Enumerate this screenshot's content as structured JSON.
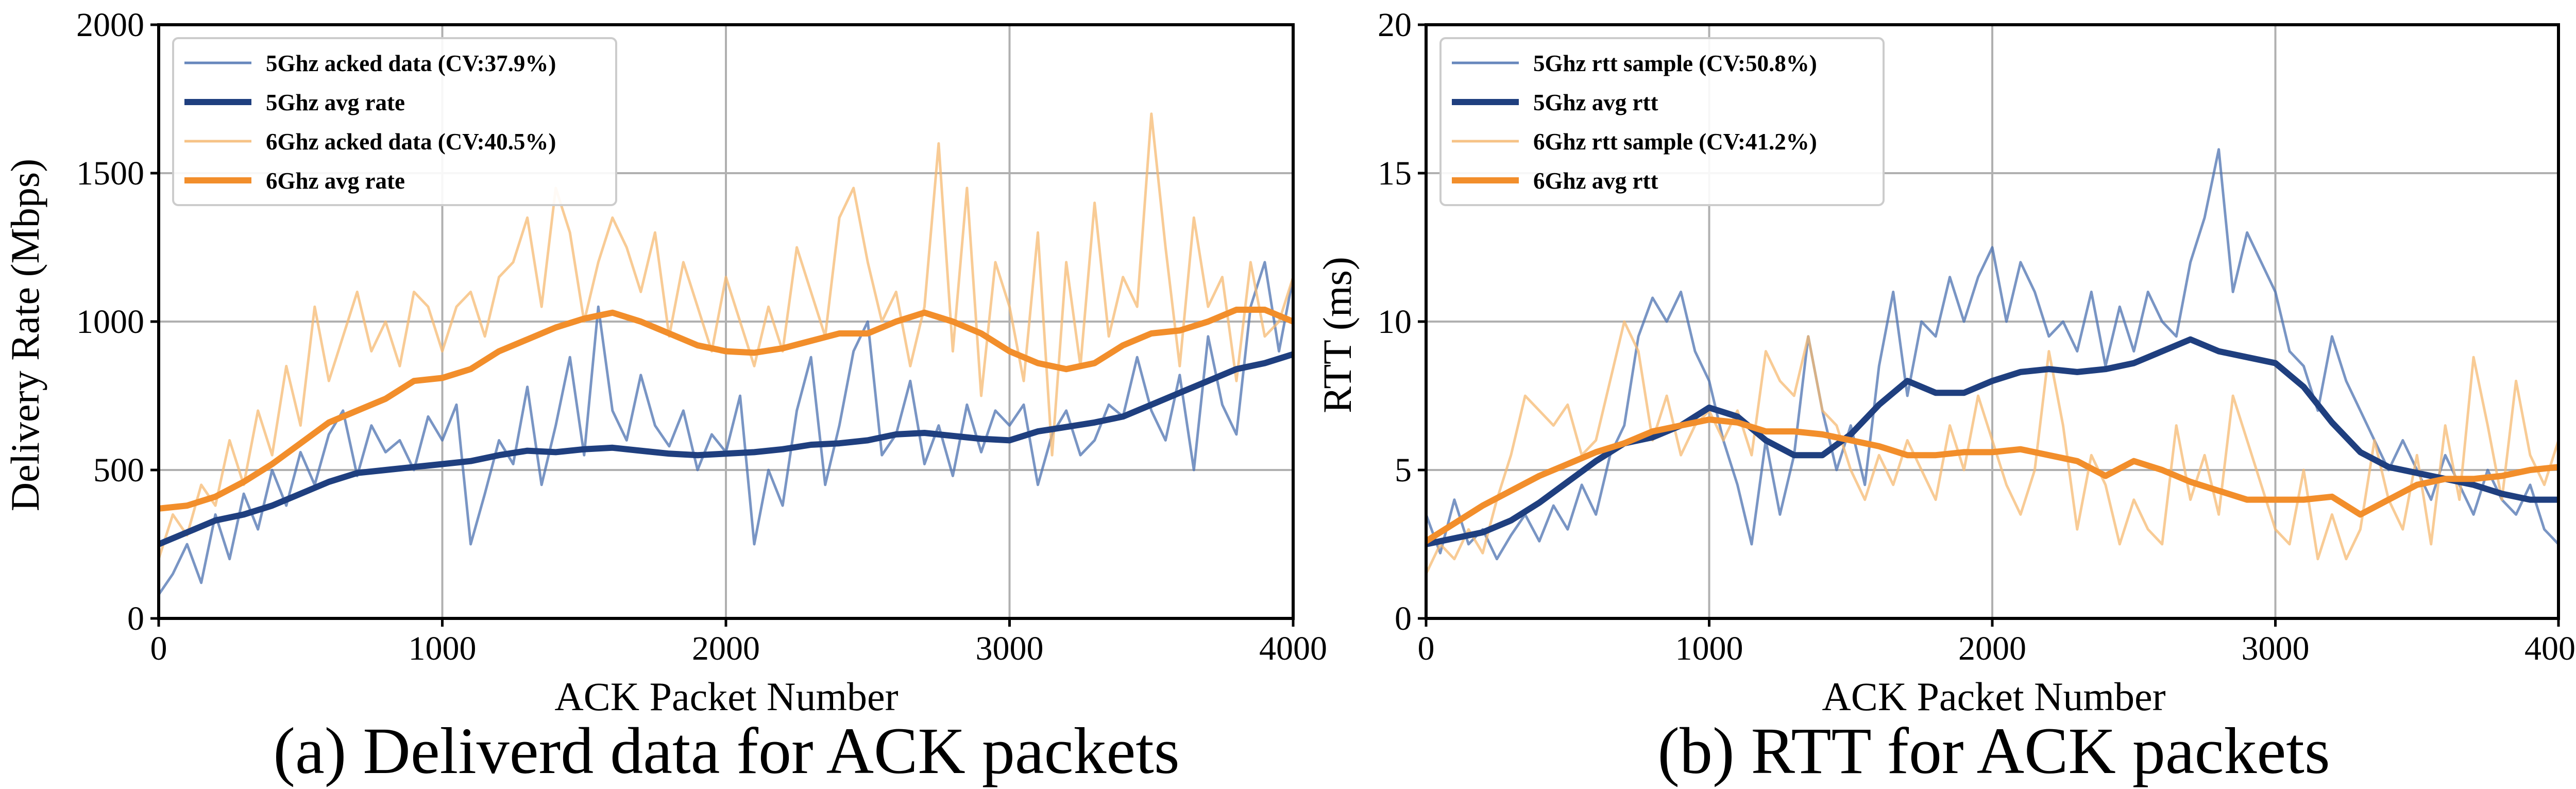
{
  "chart_data": [
    {
      "type": "line",
      "caption": "(a) Deliverd data for ACK packets",
      "xlabel": "ACK Packet Number",
      "ylabel": "Delivery Rate (Mbps)",
      "xlim": [
        0,
        4000
      ],
      "ylim": [
        0,
        2000
      ],
      "xticks": [
        0,
        1000,
        2000,
        3000,
        4000
      ],
      "yticks": [
        0,
        500,
        1000,
        1500,
        2000
      ],
      "xtick_labels": [
        "0",
        "1000",
        "2000",
        "3000",
        "4000"
      ],
      "ytick_labels": [
        "0",
        "500",
        "1000",
        "1500",
        "2000"
      ],
      "grid": true,
      "legend_position": "top-left",
      "series": [
        {
          "name": "5Ghz acked data (CV:37.9%)",
          "style": "thin",
          "color": "#4c72b0",
          "x": [
            0,
            50,
            100,
            150,
            200,
            250,
            300,
            350,
            400,
            450,
            500,
            550,
            600,
            650,
            700,
            750,
            800,
            850,
            900,
            950,
            1000,
            1050,
            1100,
            1150,
            1200,
            1250,
            1300,
            1350,
            1400,
            1450,
            1500,
            1550,
            1600,
            1650,
            1700,
            1750,
            1800,
            1850,
            1900,
            1950,
            2000,
            2050,
            2100,
            2150,
            2200,
            2250,
            2300,
            2350,
            2400,
            2450,
            2500,
            2550,
            2600,
            2650,
            2700,
            2750,
            2800,
            2850,
            2900,
            2950,
            3000,
            3050,
            3100,
            3150,
            3200,
            3250,
            3300,
            3350,
            3400,
            3450,
            3500,
            3550,
            3600,
            3650,
            3700,
            3750,
            3800,
            3850,
            3900,
            3950,
            4000
          ],
          "values": [
            80,
            150,
            250,
            120,
            350,
            200,
            420,
            300,
            500,
            380,
            560,
            450,
            620,
            700,
            480,
            650,
            560,
            600,
            500,
            680,
            600,
            720,
            250,
            420,
            600,
            520,
            780,
            450,
            650,
            880,
            550,
            1050,
            700,
            600,
            820,
            650,
            580,
            700,
            500,
            620,
            560,
            750,
            250,
            500,
            380,
            700,
            880,
            450,
            650,
            900,
            1000,
            550,
            620,
            800,
            520,
            650,
            480,
            720,
            560,
            700,
            650,
            720,
            450,
            620,
            700,
            550,
            600,
            720,
            680,
            880,
            700,
            600,
            820,
            500,
            950,
            720,
            620,
            1050,
            1200,
            900,
            1150
          ]
        },
        {
          "name": "5Ghz avg rate",
          "style": "thick",
          "color": "#1f3f7f",
          "x": [
            0,
            100,
            200,
            300,
            400,
            500,
            600,
            700,
            800,
            900,
            1000,
            1100,
            1200,
            1300,
            1400,
            1500,
            1600,
            1700,
            1800,
            1900,
            2000,
            2100,
            2200,
            2300,
            2400,
            2500,
            2600,
            2700,
            2800,
            2900,
            3000,
            3100,
            3200,
            3300,
            3400,
            3500,
            3600,
            3700,
            3800,
            3900,
            4000
          ],
          "values": [
            250,
            290,
            330,
            350,
            380,
            420,
            460,
            490,
            500,
            510,
            520,
            530,
            550,
            565,
            560,
            570,
            575,
            565,
            555,
            550,
            555,
            560,
            570,
            585,
            590,
            600,
            620,
            625,
            615,
            605,
            600,
            630,
            645,
            660,
            680,
            720,
            760,
            800,
            840,
            860,
            890
          ]
        },
        {
          "name": "6Ghz acked data (CV:40.5%)",
          "style": "thin",
          "color": "#f5b971",
          "x": [
            0,
            50,
            100,
            150,
            200,
            250,
            300,
            350,
            400,
            450,
            500,
            550,
            600,
            650,
            700,
            750,
            800,
            850,
            900,
            950,
            1000,
            1050,
            1100,
            1150,
            1200,
            1250,
            1300,
            1350,
            1400,
            1450,
            1500,
            1550,
            1600,
            1650,
            1700,
            1750,
            1800,
            1850,
            1900,
            1950,
            2000,
            2050,
            2100,
            2150,
            2200,
            2250,
            2300,
            2350,
            2400,
            2450,
            2500,
            2550,
            2600,
            2650,
            2700,
            2750,
            2800,
            2850,
            2900,
            2950,
            3000,
            3050,
            3100,
            3150,
            3200,
            3250,
            3300,
            3350,
            3400,
            3450,
            3500,
            3550,
            3600,
            3650,
            3700,
            3750,
            3800,
            3850,
            3900,
            3950,
            4000
          ],
          "values": [
            200,
            350,
            280,
            450,
            380,
            600,
            450,
            700,
            550,
            850,
            650,
            1050,
            800,
            950,
            1100,
            900,
            1000,
            850,
            1100,
            1050,
            900,
            1050,
            1100,
            950,
            1150,
            1200,
            1350,
            1050,
            1450,
            1300,
            1000,
            1200,
            1350,
            1250,
            1100,
            1300,
            950,
            1200,
            1050,
            900,
            1150,
            1000,
            850,
            1050,
            900,
            1250,
            1100,
            950,
            1350,
            1450,
            1200,
            1000,
            1100,
            850,
            1050,
            1600,
            900,
            1450,
            750,
            1200,
            1050,
            800,
            1300,
            550,
            1200,
            850,
            1400,
            950,
            1150,
            1050,
            1700,
            1250,
            850,
            1350,
            1050,
            1150,
            800,
            1200,
            950,
            1000,
            1150
          ]
        },
        {
          "name": "6Ghz avg rate",
          "style": "thick",
          "color": "#f28e2b",
          "x": [
            0,
            100,
            200,
            300,
            400,
            500,
            600,
            700,
            800,
            900,
            1000,
            1100,
            1200,
            1300,
            1400,
            1500,
            1600,
            1700,
            1800,
            1900,
            2000,
            2100,
            2200,
            2300,
            2400,
            2500,
            2600,
            2700,
            2800,
            2900,
            3000,
            3100,
            3200,
            3300,
            3400,
            3500,
            3600,
            3700,
            3800,
            3900,
            4000
          ],
          "values": [
            370,
            380,
            410,
            460,
            520,
            590,
            660,
            700,
            740,
            800,
            810,
            840,
            900,
            940,
            980,
            1010,
            1030,
            1000,
            960,
            920,
            900,
            895,
            910,
            935,
            960,
            960,
            1000,
            1030,
            1000,
            960,
            900,
            860,
            840,
            860,
            920,
            960,
            970,
            1000,
            1040,
            1040,
            1000
          ]
        }
      ]
    },
    {
      "type": "line",
      "caption": "(b) RTT for ACK packets",
      "xlabel": "ACK Packet Number",
      "ylabel": "RTT (ms)",
      "xlim": [
        0,
        4000
      ],
      "ylim": [
        0,
        20
      ],
      "xticks": [
        0,
        1000,
        2000,
        3000,
        4000
      ],
      "yticks": [
        0,
        5,
        10,
        15,
        20
      ],
      "xtick_labels": [
        "0",
        "1000",
        "2000",
        "3000",
        "4000"
      ],
      "ytick_labels": [
        "0",
        "5",
        "10",
        "15",
        "20"
      ],
      "grid": true,
      "legend_position": "top-left",
      "series": [
        {
          "name": "5Ghz rtt sample (CV:50.8%)",
          "style": "thin",
          "color": "#4c72b0",
          "x": [
            0,
            50,
            100,
            150,
            200,
            250,
            300,
            350,
            400,
            450,
            500,
            550,
            600,
            650,
            700,
            750,
            800,
            850,
            900,
            950,
            1000,
            1050,
            1100,
            1150,
            1200,
            1250,
            1300,
            1350,
            1400,
            1450,
            1500,
            1550,
            1600,
            1650,
            1700,
            1750,
            1800,
            1850,
            1900,
            1950,
            2000,
            2050,
            2100,
            2150,
            2200,
            2250,
            2300,
            2350,
            2400,
            2450,
            2500,
            2550,
            2600,
            2650,
            2700,
            2750,
            2800,
            2850,
            2900,
            2950,
            3000,
            3050,
            3100,
            3150,
            3200,
            3250,
            3300,
            3350,
            3400,
            3450,
            3500,
            3550,
            3600,
            3650,
            3700,
            3750,
            3800,
            3850,
            3900,
            3950,
            4000
          ],
          "values": [
            3.5,
            2.2,
            4.0,
            2.5,
            3.0,
            2.0,
            2.8,
            3.5,
            2.6,
            3.8,
            3.0,
            4.5,
            3.5,
            5.5,
            6.5,
            9.5,
            10.8,
            10.0,
            11.0,
            9.0,
            8.0,
            6.0,
            4.5,
            2.5,
            6.0,
            3.5,
            5.5,
            9.5,
            7.0,
            5.0,
            6.5,
            4.5,
            8.5,
            11.0,
            7.5,
            10.0,
            9.5,
            11.5,
            10.0,
            11.5,
            12.5,
            10.0,
            12.0,
            11.0,
            9.5,
            10.0,
            9.0,
            11.0,
            8.5,
            10.5,
            9.0,
            11.0,
            10.0,
            9.5,
            12.0,
            13.5,
            15.8,
            11.0,
            13.0,
            12.0,
            11.0,
            9.0,
            8.5,
            7.0,
            9.5,
            8.0,
            7.0,
            6.0,
            5.0,
            6.0,
            5.0,
            4.0,
            5.5,
            4.5,
            3.5,
            5.0,
            4.0,
            3.5,
            4.5,
            3.0,
            2.5
          ]
        },
        {
          "name": "5Ghz avg rtt",
          "style": "thick",
          "color": "#1f3f7f",
          "x": [
            0,
            100,
            200,
            300,
            400,
            500,
            600,
            700,
            800,
            900,
            1000,
            1100,
            1200,
            1300,
            1400,
            1500,
            1600,
            1700,
            1800,
            1900,
            2000,
            2100,
            2200,
            2300,
            2400,
            2500,
            2600,
            2700,
            2800,
            2900,
            3000,
            3100,
            3200,
            3300,
            3400,
            3500,
            3600,
            3700,
            3800,
            3900,
            4000
          ],
          "values": [
            2.5,
            2.7,
            2.9,
            3.3,
            3.9,
            4.6,
            5.3,
            5.9,
            6.1,
            6.5,
            7.1,
            6.8,
            6.0,
            5.5,
            5.5,
            6.2,
            7.2,
            8.0,
            7.6,
            7.6,
            8.0,
            8.3,
            8.4,
            8.3,
            8.4,
            8.6,
            9.0,
            9.4,
            9.0,
            8.8,
            8.6,
            7.8,
            6.6,
            5.6,
            5.1,
            4.9,
            4.7,
            4.5,
            4.2,
            4.0,
            4.0
          ]
        },
        {
          "name": "6Ghz rtt sample (CV:41.2%)",
          "style": "thin",
          "color": "#f5b971",
          "x": [
            0,
            50,
            100,
            150,
            200,
            250,
            300,
            350,
            400,
            450,
            500,
            550,
            600,
            650,
            700,
            750,
            800,
            850,
            900,
            950,
            1000,
            1050,
            1100,
            1150,
            1200,
            1250,
            1300,
            1350,
            1400,
            1450,
            1500,
            1550,
            1600,
            1650,
            1700,
            1750,
            1800,
            1850,
            1900,
            1950,
            2000,
            2050,
            2100,
            2150,
            2200,
            2250,
            2300,
            2350,
            2400,
            2450,
            2500,
            2550,
            2600,
            2650,
            2700,
            2750,
            2800,
            2850,
            2900,
            2950,
            3000,
            3050,
            3100,
            3150,
            3200,
            3250,
            3300,
            3350,
            3400,
            3450,
            3500,
            3550,
            3600,
            3650,
            3700,
            3750,
            3800,
            3850,
            3900,
            3950,
            4000
          ],
          "values": [
            1.5,
            2.5,
            2.0,
            3.0,
            2.2,
            4.0,
            5.5,
            7.5,
            7.0,
            6.5,
            7.2,
            5.5,
            6.0,
            8.0,
            10.0,
            9.0,
            6.0,
            7.5,
            5.5,
            6.5,
            7.0,
            6.0,
            7.0,
            5.5,
            9.0,
            8.0,
            7.5,
            9.5,
            7.0,
            6.5,
            5.0,
            4.0,
            5.5,
            4.5,
            6.0,
            5.0,
            4.0,
            6.5,
            5.0,
            7.5,
            6.0,
            4.5,
            3.5,
            5.0,
            9.0,
            6.5,
            3.0,
            5.5,
            4.5,
            2.5,
            4.0,
            3.0,
            2.5,
            6.5,
            4.0,
            5.5,
            3.5,
            7.5,
            6.0,
            4.5,
            3.0,
            2.5,
            5.0,
            2.0,
            3.5,
            2.0,
            3.0,
            6.0,
            4.0,
            3.0,
            5.5,
            2.5,
            6.5,
            4.0,
            8.8,
            6.5,
            4.0,
            8.0,
            5.5,
            4.5,
            6.0
          ]
        },
        {
          "name": "6Ghz avg rtt",
          "style": "thick",
          "color": "#f28e2b",
          "x": [
            0,
            100,
            200,
            300,
            400,
            500,
            600,
            700,
            800,
            900,
            1000,
            1100,
            1200,
            1300,
            1400,
            1500,
            1600,
            1700,
            1800,
            1900,
            2000,
            2100,
            2200,
            2300,
            2400,
            2500,
            2600,
            2700,
            2800,
            2900,
            3000,
            3100,
            3200,
            3300,
            3400,
            3500,
            3600,
            3700,
            3800,
            3900,
            4000
          ],
          "values": [
            2.6,
            3.2,
            3.8,
            4.3,
            4.8,
            5.2,
            5.6,
            5.9,
            6.3,
            6.5,
            6.7,
            6.6,
            6.3,
            6.3,
            6.2,
            6.0,
            5.8,
            5.5,
            5.5,
            5.6,
            5.6,
            5.7,
            5.5,
            5.3,
            4.8,
            5.3,
            5.0,
            4.6,
            4.3,
            4.0,
            4.0,
            4.0,
            4.1,
            3.5,
            4.0,
            4.5,
            4.7,
            4.7,
            4.8,
            5.0,
            5.1
          ]
        }
      ]
    }
  ]
}
